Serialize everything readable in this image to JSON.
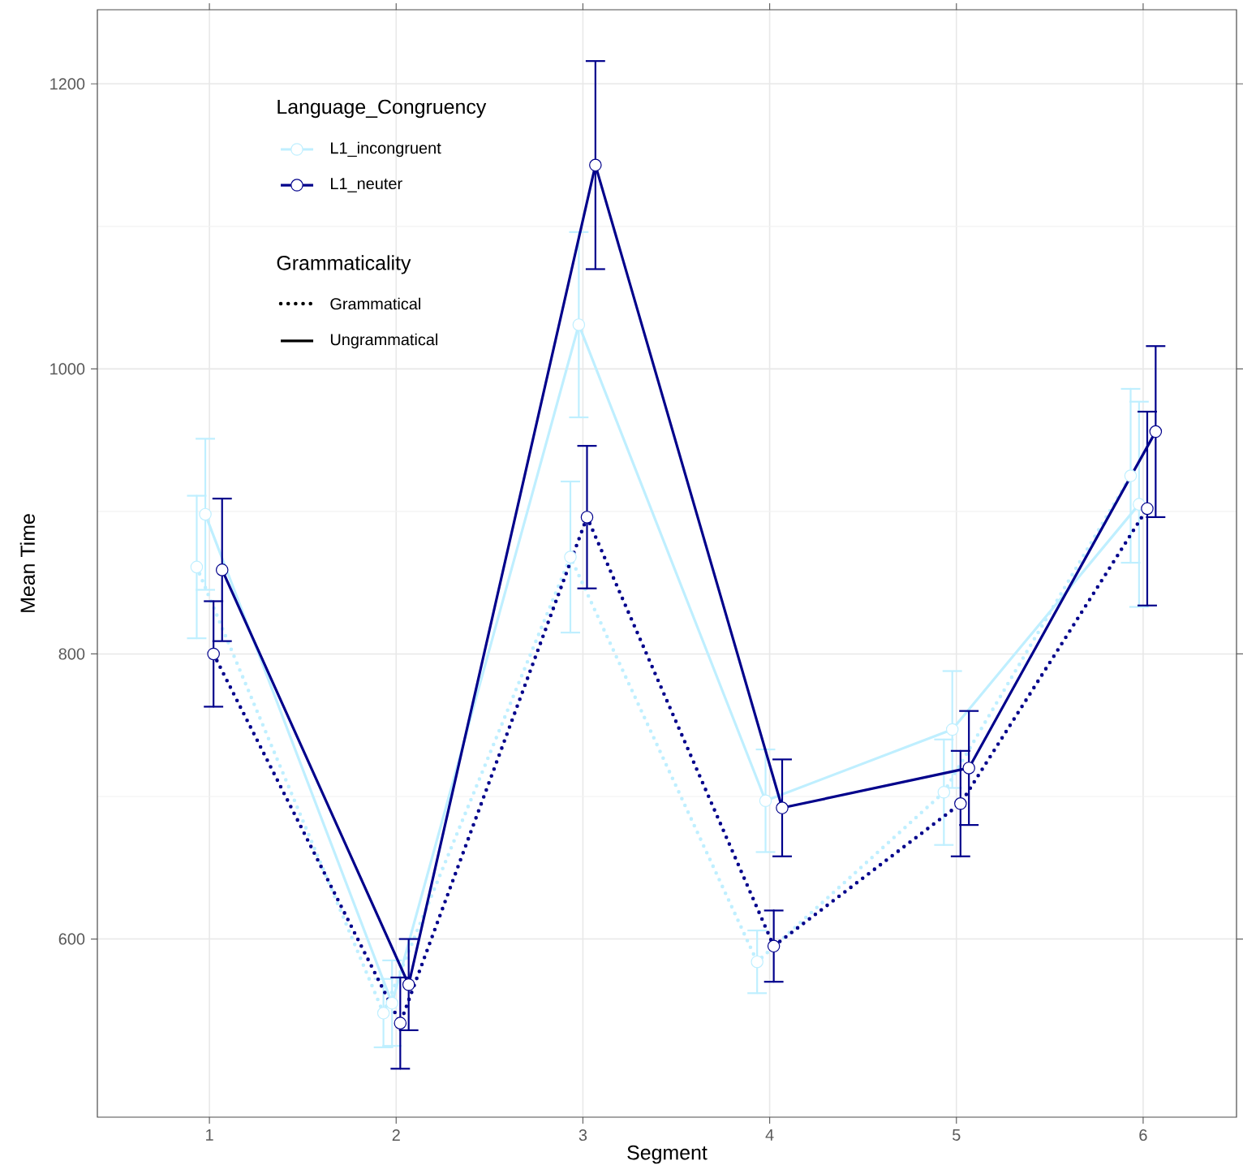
{
  "chart_data": {
    "type": "line",
    "xlabel": "Segment",
    "ylabel": "Mean Time",
    "legend_title": "Language_Congruency",
    "categories": [
      "1",
      "2",
      "3",
      "4",
      "5",
      "6"
    ],
    "ylim": [
      475,
      1252
    ],
    "yticks": [
      600,
      800,
      1000,
      1200
    ],
    "grid": true,
    "legend": "top left",
    "marker": "circle",
    "series": [
      {
        "color": "#bfefff",
        "line_style": "dotted",
        "values": [
          861,
          548,
          868,
          584,
          703,
          925
        ],
        "errors": [
          50,
          24,
          53,
          22,
          37,
          61
        ]
      },
      {
        "name": "L1_incongruent",
        "color": "#bfefff",
        "line_style": "solid",
        "values": [
          898,
          555,
          1031,
          697,
          747,
          905
        ],
        "errors": [
          53,
          30,
          65,
          36,
          41,
          72
        ]
      },
      {
        "color": "#00008b",
        "line_style": "dotted",
        "values": [
          800,
          541,
          896,
          595,
          695,
          902
        ],
        "errors": [
          37,
          32,
          50,
          25,
          37,
          68
        ]
      },
      {
        "name": "L1_neuter",
        "color": "#00008b",
        "line_style": "solid",
        "values": [
          859,
          568,
          1143,
          692,
          720,
          956
        ],
        "errors": [
          50,
          32,
          73,
          34,
          40,
          60
        ]
      }
    ],
    "annotations": [
      "Grammaticality",
      "Grammatical",
      "Ungrammatical"
    ]
  }
}
